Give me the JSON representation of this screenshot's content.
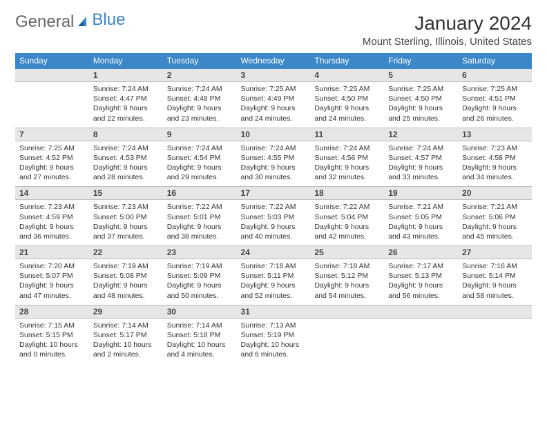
{
  "logo": {
    "part1": "General",
    "part2": "Blue"
  },
  "title": "January 2024",
  "location": "Mount Sterling, Illinois, United States",
  "header_bg": "#3b87c8",
  "daynum_bg": "#e6e6e6",
  "days": [
    "Sunday",
    "Monday",
    "Tuesday",
    "Wednesday",
    "Thursday",
    "Friday",
    "Saturday"
  ],
  "weeks": [
    [
      null,
      {
        "n": "1",
        "sr": "7:24 AM",
        "ss": "4:47 PM",
        "dl": "9 hours and 22 minutes."
      },
      {
        "n": "2",
        "sr": "7:24 AM",
        "ss": "4:48 PM",
        "dl": "9 hours and 23 minutes."
      },
      {
        "n": "3",
        "sr": "7:25 AM",
        "ss": "4:49 PM",
        "dl": "9 hours and 24 minutes."
      },
      {
        "n": "4",
        "sr": "7:25 AM",
        "ss": "4:50 PM",
        "dl": "9 hours and 24 minutes."
      },
      {
        "n": "5",
        "sr": "7:25 AM",
        "ss": "4:50 PM",
        "dl": "9 hours and 25 minutes."
      },
      {
        "n": "6",
        "sr": "7:25 AM",
        "ss": "4:51 PM",
        "dl": "9 hours and 26 minutes."
      }
    ],
    [
      {
        "n": "7",
        "sr": "7:25 AM",
        "ss": "4:52 PM",
        "dl": "9 hours and 27 minutes."
      },
      {
        "n": "8",
        "sr": "7:24 AM",
        "ss": "4:53 PM",
        "dl": "9 hours and 28 minutes."
      },
      {
        "n": "9",
        "sr": "7:24 AM",
        "ss": "4:54 PM",
        "dl": "9 hours and 29 minutes."
      },
      {
        "n": "10",
        "sr": "7:24 AM",
        "ss": "4:55 PM",
        "dl": "9 hours and 30 minutes."
      },
      {
        "n": "11",
        "sr": "7:24 AM",
        "ss": "4:56 PM",
        "dl": "9 hours and 32 minutes."
      },
      {
        "n": "12",
        "sr": "7:24 AM",
        "ss": "4:57 PM",
        "dl": "9 hours and 33 minutes."
      },
      {
        "n": "13",
        "sr": "7:23 AM",
        "ss": "4:58 PM",
        "dl": "9 hours and 34 minutes."
      }
    ],
    [
      {
        "n": "14",
        "sr": "7:23 AM",
        "ss": "4:59 PM",
        "dl": "9 hours and 36 minutes."
      },
      {
        "n": "15",
        "sr": "7:23 AM",
        "ss": "5:00 PM",
        "dl": "9 hours and 37 minutes."
      },
      {
        "n": "16",
        "sr": "7:22 AM",
        "ss": "5:01 PM",
        "dl": "9 hours and 38 minutes."
      },
      {
        "n": "17",
        "sr": "7:22 AM",
        "ss": "5:03 PM",
        "dl": "9 hours and 40 minutes."
      },
      {
        "n": "18",
        "sr": "7:22 AM",
        "ss": "5:04 PM",
        "dl": "9 hours and 42 minutes."
      },
      {
        "n": "19",
        "sr": "7:21 AM",
        "ss": "5:05 PM",
        "dl": "9 hours and 43 minutes."
      },
      {
        "n": "20",
        "sr": "7:21 AM",
        "ss": "5:06 PM",
        "dl": "9 hours and 45 minutes."
      }
    ],
    [
      {
        "n": "21",
        "sr": "7:20 AM",
        "ss": "5:07 PM",
        "dl": "9 hours and 47 minutes."
      },
      {
        "n": "22",
        "sr": "7:19 AM",
        "ss": "5:08 PM",
        "dl": "9 hours and 48 minutes."
      },
      {
        "n": "23",
        "sr": "7:19 AM",
        "ss": "5:09 PM",
        "dl": "9 hours and 50 minutes."
      },
      {
        "n": "24",
        "sr": "7:18 AM",
        "ss": "5:11 PM",
        "dl": "9 hours and 52 minutes."
      },
      {
        "n": "25",
        "sr": "7:18 AM",
        "ss": "5:12 PM",
        "dl": "9 hours and 54 minutes."
      },
      {
        "n": "26",
        "sr": "7:17 AM",
        "ss": "5:13 PM",
        "dl": "9 hours and 56 minutes."
      },
      {
        "n": "27",
        "sr": "7:16 AM",
        "ss": "5:14 PM",
        "dl": "9 hours and 58 minutes."
      }
    ],
    [
      {
        "n": "28",
        "sr": "7:15 AM",
        "ss": "5:15 PM",
        "dl": "10 hours and 0 minutes."
      },
      {
        "n": "29",
        "sr": "7:14 AM",
        "ss": "5:17 PM",
        "dl": "10 hours and 2 minutes."
      },
      {
        "n": "30",
        "sr": "7:14 AM",
        "ss": "5:18 PM",
        "dl": "10 hours and 4 minutes."
      },
      {
        "n": "31",
        "sr": "7:13 AM",
        "ss": "5:19 PM",
        "dl": "10 hours and 6 minutes."
      },
      null,
      null,
      null
    ]
  ]
}
